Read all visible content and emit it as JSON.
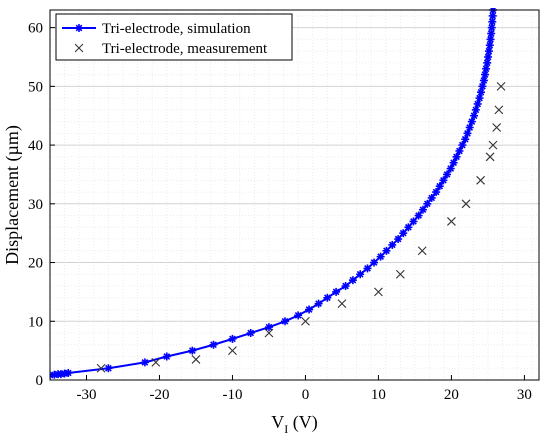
{
  "chart_data": {
    "type": "line",
    "title": "",
    "xlabel_main": "V",
    "xlabel_sub": "I",
    "xlabel_unit": " (V)",
    "ylabel": "Displacement (µm)",
    "xlim": [
      -35,
      32
    ],
    "ylim": [
      0,
      63
    ],
    "xticks": [
      -30,
      -20,
      -10,
      0,
      10,
      20,
      30
    ],
    "yticks": [
      0,
      10,
      20,
      30,
      40,
      50,
      60
    ],
    "grid": true,
    "legend_position": "top-left",
    "series": [
      {
        "name": "Tri-electrode, simulation",
        "color": "#0000ff",
        "marker": "asterisk",
        "line": true,
        "x": [
          -35.0,
          -34.4,
          -33.9,
          -33.5,
          -33.0,
          -32.5,
          -27.0,
          -22.0,
          -19.0,
          -15.5,
          -12.6,
          -10.0,
          -7.5,
          -5.0,
          -2.8,
          -1.0,
          0.5,
          1.8,
          3.0,
          4.2,
          5.5,
          6.5,
          7.5,
          8.5,
          9.4,
          10.3,
          11.1,
          11.9,
          12.7,
          13.4,
          14.1,
          14.8,
          15.5,
          16.1,
          16.7,
          17.3,
          17.9,
          18.4,
          18.9,
          19.4,
          19.9,
          20.3,
          20.7,
          21.1,
          21.5,
          21.9,
          22.2,
          22.5,
          22.8,
          23.1,
          23.35,
          23.6,
          23.85,
          24.05,
          24.25,
          24.45,
          24.6,
          24.75,
          24.9,
          25.02,
          25.14,
          25.26,
          25.36,
          25.45,
          25.53,
          25.6,
          25.66,
          25.71,
          25.75,
          25.78,
          25.8
        ],
        "y": [
          0.8,
          0.9,
          1.0,
          1.0,
          1.1,
          1.2,
          2.0,
          3.0,
          4.0,
          5.0,
          6.0,
          7.0,
          8.0,
          9.0,
          10.0,
          11.0,
          12.0,
          13.0,
          14.0,
          15.0,
          16.0,
          17.0,
          18.0,
          19.0,
          20.0,
          21.0,
          22.0,
          23.0,
          24.0,
          25.0,
          26.0,
          27.0,
          28.0,
          29.0,
          30.0,
          31.0,
          32.0,
          33.0,
          34.0,
          35.0,
          36.0,
          37.0,
          38.0,
          39.0,
          40.0,
          41.0,
          42.0,
          43.0,
          44.0,
          45.0,
          46.0,
          47.0,
          48.0,
          49.0,
          50.0,
          51.0,
          52.0,
          53.0,
          54.0,
          55.0,
          56.0,
          57.0,
          58.0,
          59.0,
          60.0,
          61.0,
          62.0,
          63.0,
          64.0,
          65.0,
          66.0
        ]
      },
      {
        "name": "Tri-electrode, measurement",
        "color": "#333333",
        "marker": "x",
        "line": false,
        "x": [
          -28,
          -20.5,
          -15,
          -10,
          -5,
          0,
          5,
          10,
          13,
          16,
          20,
          22,
          24,
          25.3,
          25.7,
          26.2,
          26.5,
          26.8
        ],
        "y": [
          2,
          3,
          3.5,
          5,
          8,
          10,
          13,
          15,
          18,
          22,
          27,
          30,
          34,
          38,
          40,
          43,
          46,
          50
        ]
      }
    ]
  }
}
